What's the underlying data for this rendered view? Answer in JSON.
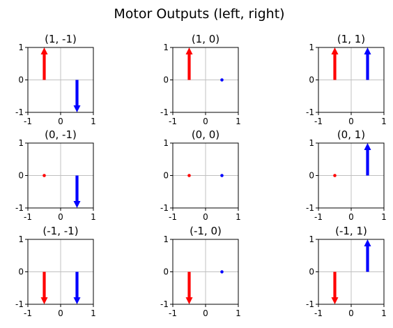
{
  "title": "Motor Outputs (left, right)",
  "colors": {
    "left": "#ff0000",
    "right": "#0000ff",
    "guide": "#c0c0c0"
  },
  "chart_data": [
    {
      "type": "quiver",
      "title": "(1, -1)",
      "left": 1,
      "right": -1,
      "xlim": [
        -1,
        1
      ],
      "ylim": [
        -1,
        1
      ],
      "xticks": [
        "-1",
        "0",
        "1"
      ],
      "yticks": [
        "1",
        "0",
        "-1"
      ],
      "grid": false
    },
    {
      "type": "quiver",
      "title": "(1, 0)",
      "left": 1,
      "right": 0,
      "xlim": [
        -1,
        1
      ],
      "ylim": [
        -1,
        1
      ],
      "xticks": [
        "-1",
        "0",
        "1"
      ],
      "yticks": [
        "1",
        "0",
        "-1"
      ],
      "grid": false
    },
    {
      "type": "quiver",
      "title": "(1, 1)",
      "left": 1,
      "right": 1,
      "xlim": [
        -1,
        1
      ],
      "ylim": [
        -1,
        1
      ],
      "xticks": [
        "-1",
        "0",
        "1"
      ],
      "yticks": [
        "1",
        "0",
        "-1"
      ],
      "grid": false
    },
    {
      "type": "quiver",
      "title": "(0, -1)",
      "left": 0,
      "right": -1,
      "xlim": [
        -1,
        1
      ],
      "ylim": [
        -1,
        1
      ],
      "xticks": [
        "-1",
        "0",
        "1"
      ],
      "yticks": [
        "1",
        "0",
        "-1"
      ],
      "grid": false
    },
    {
      "type": "quiver",
      "title": "(0, 0)",
      "left": 0,
      "right": 0,
      "xlim": [
        -1,
        1
      ],
      "ylim": [
        -1,
        1
      ],
      "xticks": [
        "-1",
        "0",
        "1"
      ],
      "yticks": [
        "1",
        "0",
        "-1"
      ],
      "grid": false
    },
    {
      "type": "quiver",
      "title": "(0, 1)",
      "left": 0,
      "right": 1,
      "xlim": [
        -1,
        1
      ],
      "ylim": [
        -1,
        1
      ],
      "xticks": [
        "-1",
        "0",
        "1"
      ],
      "yticks": [
        "1",
        "0",
        "-1"
      ],
      "grid": false
    },
    {
      "type": "quiver",
      "title": "(-1, -1)",
      "left": -1,
      "right": -1,
      "xlim": [
        -1,
        1
      ],
      "ylim": [
        -1,
        1
      ],
      "xticks": [
        "-1",
        "0",
        "1"
      ],
      "yticks": [
        "1",
        "0",
        "-1"
      ],
      "grid": false
    },
    {
      "type": "quiver",
      "title": "(-1, 0)",
      "left": -1,
      "right": 0,
      "xlim": [
        -1,
        1
      ],
      "ylim": [
        -1,
        1
      ],
      "xticks": [
        "-1",
        "0",
        "1"
      ],
      "yticks": [
        "1",
        "0",
        "-1"
      ],
      "grid": false
    },
    {
      "type": "quiver",
      "title": "(-1, 1)",
      "left": -1,
      "right": 1,
      "xlim": [
        -1,
        1
      ],
      "ylim": [
        -1,
        1
      ],
      "xticks": [
        "-1",
        "0",
        "1"
      ],
      "yticks": [
        "1",
        "0",
        "-1"
      ],
      "grid": false
    }
  ]
}
